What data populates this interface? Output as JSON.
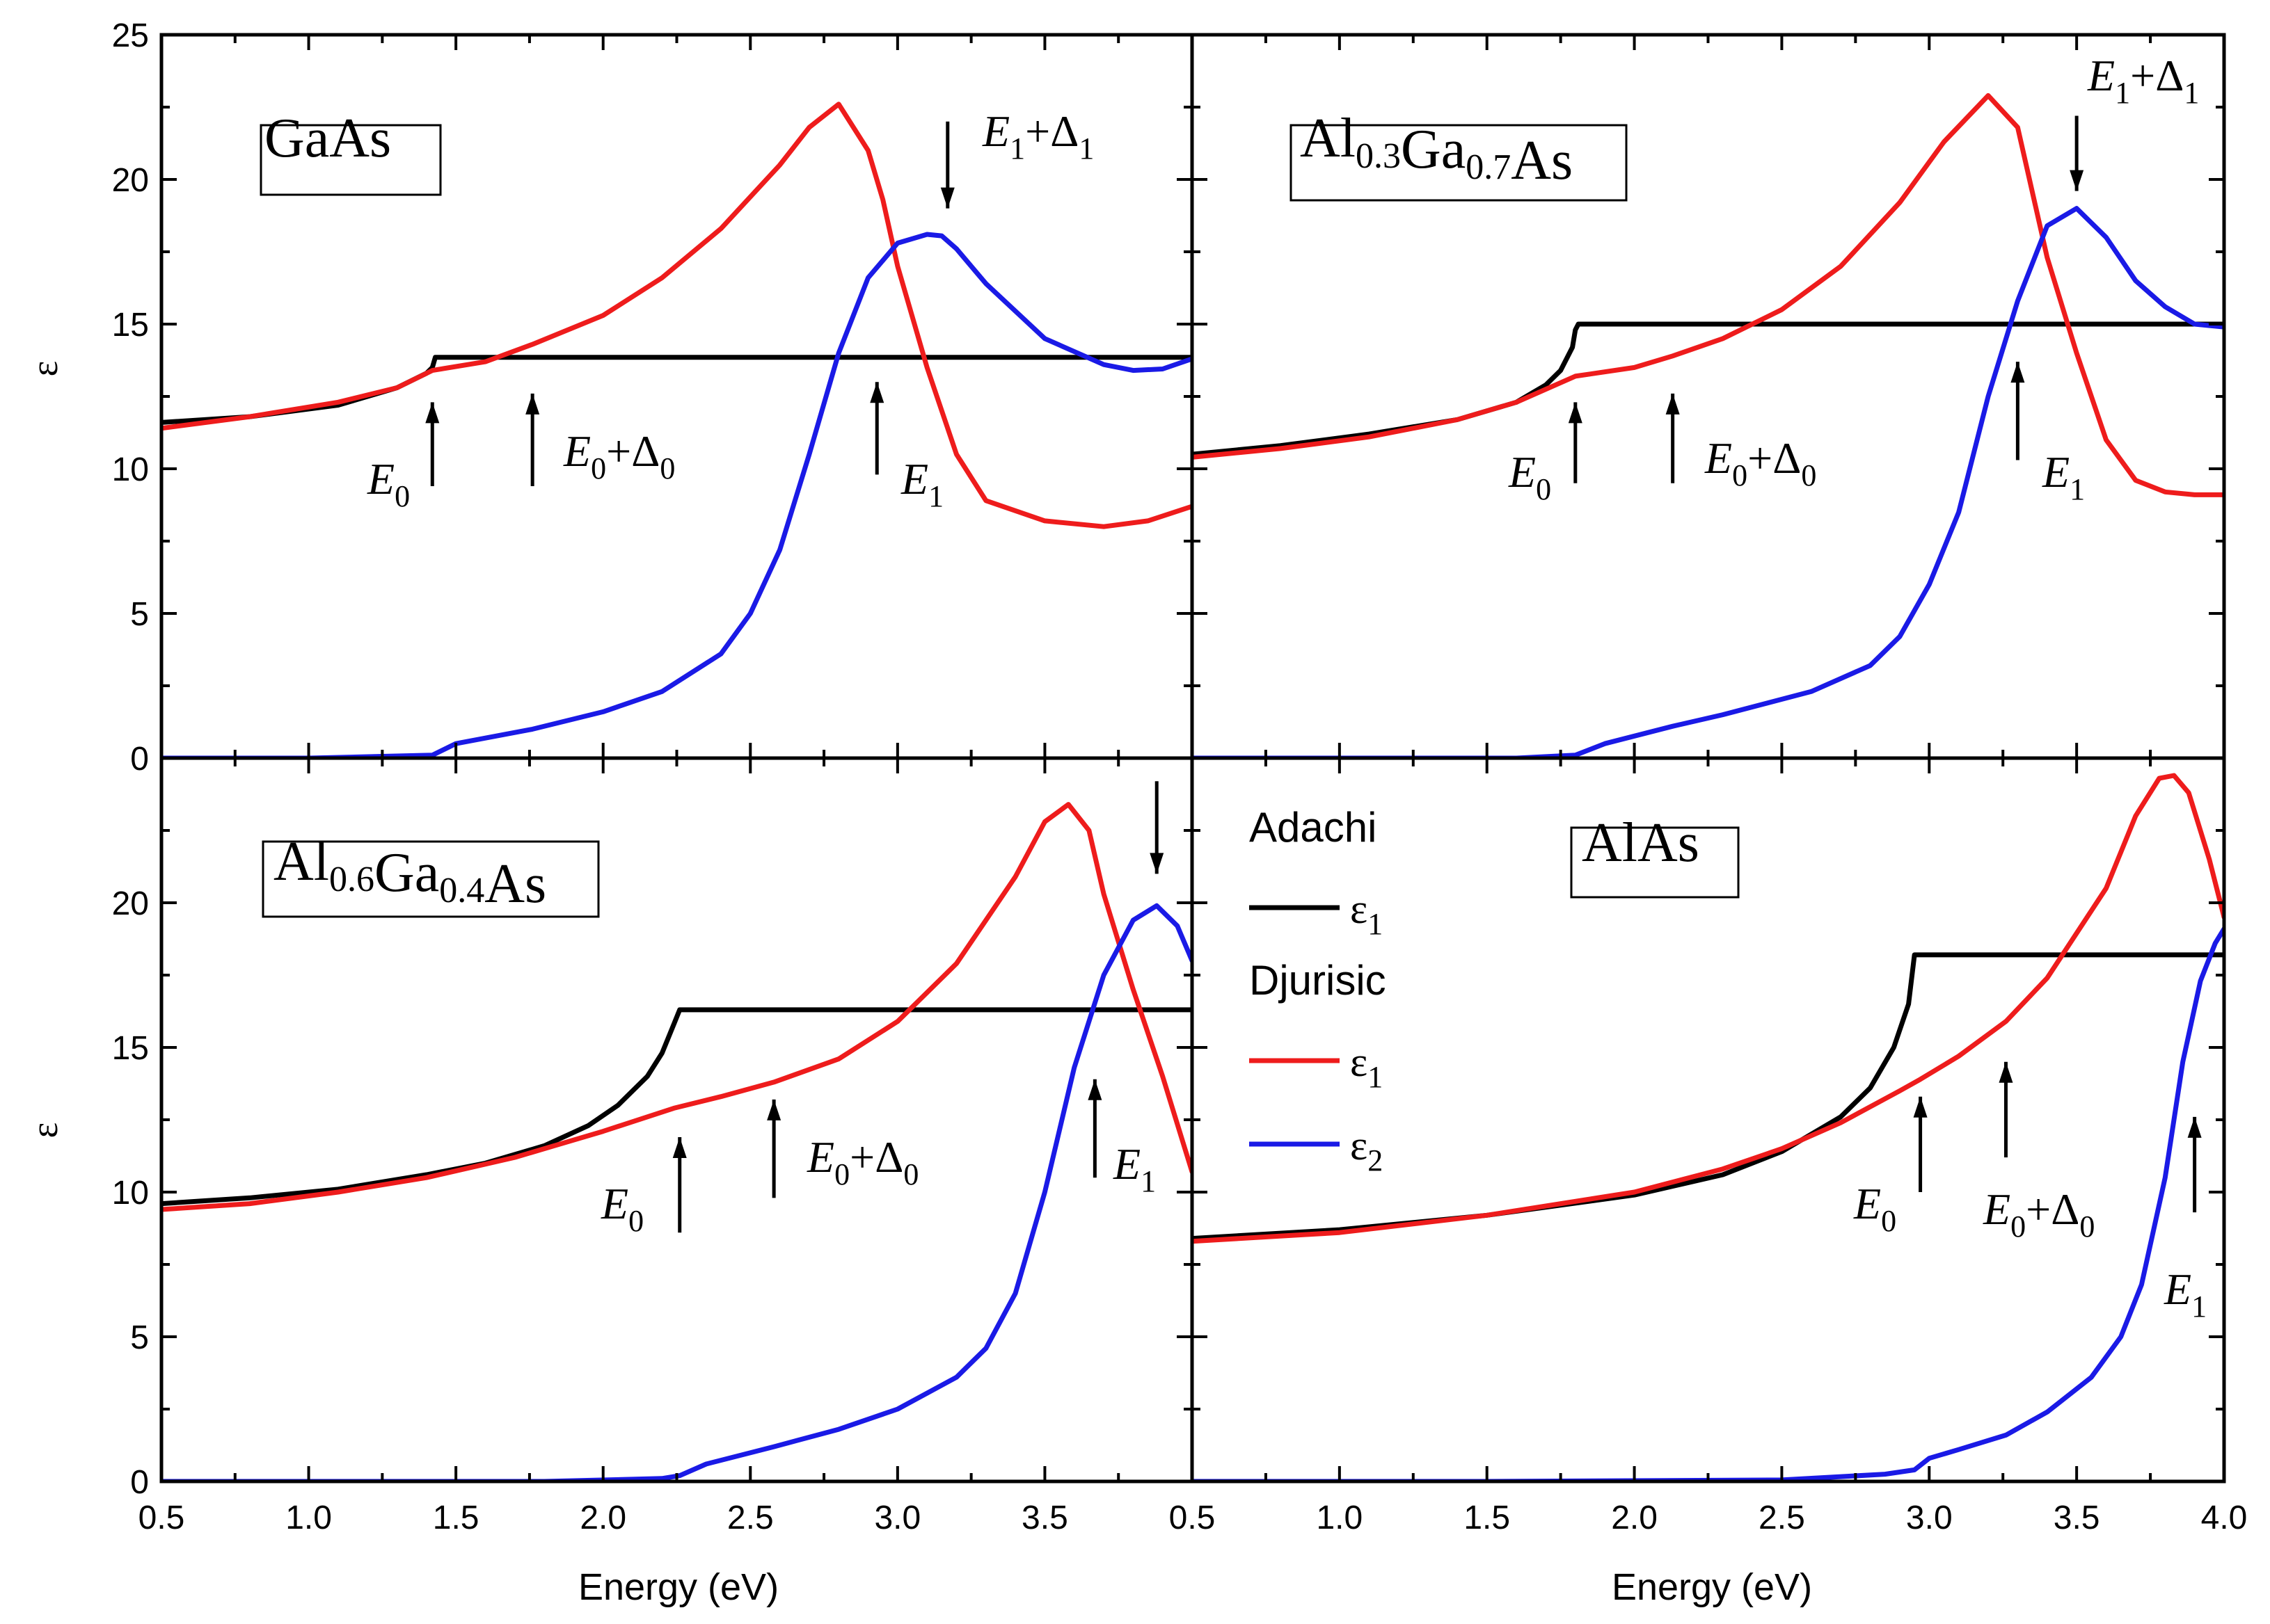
{
  "figure": {
    "x_axis_title": "Energy (eV)",
    "y_axis_title": "ε",
    "colors": {
      "adachi_e1": "#000000",
      "djurisic_e1": "#ee1c1c",
      "djurisic_e2": "#1a1ae6",
      "frame": "#000000"
    }
  },
  "legend": {
    "group1": "Adachi",
    "group2": "Djurisic",
    "entries": [
      {
        "base": "ε",
        "sub": "1",
        "color": "#000000"
      },
      {
        "base": "ε",
        "sub": "1",
        "color": "#ee1c1c"
      },
      {
        "base": "ε",
        "sub": "2",
        "color": "#1a1ae6"
      }
    ]
  },
  "chart_data": [
    {
      "type": "line",
      "panel": "top-left",
      "title_parts": [
        {
          "t": "GaAs"
        }
      ],
      "xlim": [
        0.5,
        4.0
      ],
      "ylim": [
        0,
        25
      ],
      "x_ticks": [],
      "y_ticks": [
        "0",
        "5",
        "10",
        "15",
        "20",
        "25"
      ],
      "y_tick_values": [
        0,
        5,
        10,
        15,
        20,
        25
      ],
      "series": [
        {
          "name": "Adachi ε1",
          "color": "#000000",
          "x": [
            0.5,
            0.8,
            1.1,
            1.3,
            1.4,
            1.42,
            1.43,
            4.0
          ],
          "y": [
            11.6,
            11.8,
            12.2,
            12.8,
            13.3,
            13.5,
            13.85,
            13.85
          ]
        },
        {
          "name": "Djurisic ε1",
          "color": "#ee1c1c",
          "x": [
            0.5,
            0.8,
            1.1,
            1.3,
            1.42,
            1.6,
            1.76,
            2.0,
            2.2,
            2.4,
            2.6,
            2.7,
            2.8,
            2.9,
            2.95,
            3.0,
            3.1,
            3.2,
            3.3,
            3.5,
            3.7,
            3.85,
            4.0
          ],
          "y": [
            11.4,
            11.8,
            12.3,
            12.8,
            13.4,
            13.7,
            14.3,
            15.3,
            16.6,
            18.3,
            20.5,
            21.8,
            22.6,
            21.0,
            19.3,
            17.0,
            13.5,
            10.5,
            8.9,
            8.2,
            8.0,
            8.2,
            8.7
          ]
        },
        {
          "name": "Djurisic ε2",
          "color": "#1a1ae6",
          "x": [
            0.5,
            1.0,
            1.42,
            1.5,
            1.76,
            2.0,
            2.2,
            2.4,
            2.5,
            2.6,
            2.7,
            2.8,
            2.9,
            3.0,
            3.1,
            3.15,
            3.2,
            3.3,
            3.5,
            3.7,
            3.8,
            3.9,
            4.0
          ],
          "y": [
            0.0,
            0.0,
            0.1,
            0.5,
            1.0,
            1.6,
            2.3,
            3.6,
            5.0,
            7.2,
            10.5,
            14.0,
            16.6,
            17.8,
            18.1,
            18.05,
            17.6,
            16.4,
            14.5,
            13.6,
            13.4,
            13.45,
            13.8
          ]
        }
      ],
      "annotations": [
        {
          "base": "E",
          "sub": "0",
          "extra": "",
          "dir": "up",
          "x": 1.42,
          "y_from": 9.4,
          "y_to": 12.3
        },
        {
          "base": "E",
          "sub": "0",
          "extra": "+Δ",
          "extra_sub": "0",
          "dir": "up",
          "x": 1.76,
          "y_from": 9.4,
          "y_to": 12.6
        },
        {
          "base": "E",
          "sub": "1",
          "extra": "",
          "dir": "up",
          "x": 2.93,
          "y_from": 9.8,
          "y_to": 13.0
        },
        {
          "base": "E",
          "sub": "1",
          "extra": "+Δ",
          "extra_sub": "1",
          "dir": "down",
          "x": 3.17,
          "y_from": 22.0,
          "y_to": 19.0
        }
      ]
    },
    {
      "type": "line",
      "panel": "top-right",
      "title_parts": [
        {
          "t": "Al"
        },
        {
          "s": "0.3"
        },
        {
          "t": "Ga"
        },
        {
          "s": "0.7"
        },
        {
          "t": "As"
        }
      ],
      "xlim": [
        0.5,
        4.0
      ],
      "ylim": [
        0,
        25
      ],
      "x_ticks": [],
      "y_ticks": [],
      "y_tick_values": [
        0,
        5,
        10,
        15,
        20,
        25
      ],
      "series": [
        {
          "name": "Adachi ε1",
          "color": "#000000",
          "x": [
            0.5,
            0.8,
            1.1,
            1.4,
            1.6,
            1.7,
            1.75,
            1.79,
            1.8,
            1.81,
            4.0
          ],
          "y": [
            10.5,
            10.8,
            11.2,
            11.7,
            12.3,
            12.9,
            13.4,
            14.2,
            14.8,
            15.0,
            15.0
          ]
        },
        {
          "name": "Djurisic ε1",
          "color": "#ee1c1c",
          "x": [
            0.5,
            0.8,
            1.1,
            1.4,
            1.6,
            1.8,
            2.0,
            2.13,
            2.3,
            2.5,
            2.7,
            2.9,
            3.05,
            3.2,
            3.3,
            3.4,
            3.5,
            3.6,
            3.7,
            3.8,
            3.9,
            4.0
          ],
          "y": [
            10.4,
            10.7,
            11.1,
            11.7,
            12.3,
            13.2,
            13.5,
            13.9,
            14.5,
            15.5,
            17.0,
            19.2,
            21.3,
            22.9,
            21.8,
            17.3,
            14.0,
            11.0,
            9.6,
            9.2,
            9.1,
            9.1
          ]
        },
        {
          "name": "Djurisic ε2",
          "color": "#1a1ae6",
          "x": [
            0.5,
            1.0,
            1.6,
            1.8,
            1.9,
            2.13,
            2.3,
            2.6,
            2.8,
            2.9,
            3.0,
            3.1,
            3.2,
            3.3,
            3.4,
            3.5,
            3.6,
            3.7,
            3.8,
            3.9,
            4.0
          ],
          "y": [
            0.0,
            0.0,
            0.0,
            0.1,
            0.5,
            1.1,
            1.5,
            2.3,
            3.2,
            4.2,
            6.0,
            8.5,
            12.5,
            15.8,
            18.4,
            19.0,
            18.0,
            16.5,
            15.6,
            15.0,
            14.9
          ]
        }
      ],
      "annotations": [
        {
          "base": "E",
          "sub": "0",
          "extra": "",
          "dir": "up",
          "x": 1.8,
          "y_from": 9.5,
          "y_to": 12.3
        },
        {
          "base": "E",
          "sub": "0",
          "extra": "+Δ",
          "extra_sub": "0",
          "dir": "up",
          "x": 2.13,
          "y_from": 9.5,
          "y_to": 12.6
        },
        {
          "base": "E",
          "sub": "1",
          "extra": "",
          "dir": "up",
          "x": 3.3,
          "y_from": 10.3,
          "y_to": 13.7
        },
        {
          "base": "E",
          "sub": "1",
          "extra": "+Δ",
          "extra_sub": "1",
          "dir": "down",
          "x": 3.5,
          "y_from": 22.2,
          "y_to": 19.6
        }
      ]
    },
    {
      "type": "line",
      "panel": "bottom-left",
      "title_parts": [
        {
          "t": "Al"
        },
        {
          "s": "0.6"
        },
        {
          "t": "Ga"
        },
        {
          "s": "0.4"
        },
        {
          "t": "As"
        }
      ],
      "xlim": [
        0.5,
        4.0
      ],
      "ylim": [
        0,
        25
      ],
      "x_ticks": [
        "0.5",
        "1.0",
        "1.5",
        "2.0",
        "2.5",
        "3.0",
        "3.5"
      ],
      "x_tick_values": [
        0.5,
        1.0,
        1.5,
        2.0,
        2.5,
        3.0,
        3.5
      ],
      "y_ticks": [
        "0",
        "5",
        "10",
        "15",
        "20"
      ],
      "y_tick_values": [
        0,
        5,
        10,
        15,
        20
      ],
      "series": [
        {
          "name": "Adachi ε1",
          "color": "#000000",
          "x": [
            0.5,
            0.8,
            1.1,
            1.4,
            1.6,
            1.8,
            1.95,
            2.05,
            2.15,
            2.2,
            2.24,
            2.26,
            4.0
          ],
          "y": [
            9.6,
            9.8,
            10.1,
            10.6,
            11.0,
            11.6,
            12.3,
            13.0,
            14.0,
            14.8,
            15.8,
            16.3,
            16.3
          ]
        },
        {
          "name": "Djurisic ε1",
          "color": "#ee1c1c",
          "x": [
            0.5,
            0.8,
            1.1,
            1.4,
            1.7,
            2.0,
            2.24,
            2.4,
            2.58,
            2.8,
            3.0,
            3.2,
            3.4,
            3.5,
            3.58,
            3.65,
            3.7,
            3.8,
            3.9,
            4.0
          ],
          "y": [
            9.4,
            9.6,
            10.0,
            10.5,
            11.2,
            12.1,
            12.9,
            13.3,
            13.8,
            14.6,
            15.9,
            17.9,
            20.9,
            22.8,
            23.4,
            22.5,
            20.3,
            17.0,
            14.0,
            10.7
          ]
        },
        {
          "name": "Djurisic ε2",
          "color": "#1a1ae6",
          "x": [
            0.5,
            1.0,
            1.8,
            2.2,
            2.26,
            2.35,
            2.58,
            2.8,
            3.0,
            3.2,
            3.3,
            3.4,
            3.5,
            3.6,
            3.7,
            3.8,
            3.88,
            3.95,
            4.0
          ],
          "y": [
            0.0,
            0.0,
            0.0,
            0.1,
            0.2,
            0.6,
            1.2,
            1.8,
            2.5,
            3.6,
            4.6,
            6.5,
            10.0,
            14.3,
            17.5,
            19.4,
            19.9,
            19.2,
            18.0
          ]
        }
      ],
      "annotations": [
        {
          "base": "E",
          "sub": "0",
          "extra": "",
          "dir": "up",
          "x": 2.26,
          "y_from": 8.6,
          "y_to": 11.9
        },
        {
          "base": "E",
          "sub": "0",
          "extra": "+Δ",
          "extra_sub": "0",
          "dir": "up",
          "x": 2.58,
          "y_from": 9.8,
          "y_to": 13.2
        },
        {
          "base": "E",
          "sub": "1",
          "extra": "",
          "dir": "up",
          "x": 3.67,
          "y_from": 10.5,
          "y_to": 13.9
        },
        {
          "base": "",
          "sub": "",
          "extra": "",
          "dir": "down",
          "x": 3.88,
          "y_from": 24.2,
          "y_to": 21.0
        }
      ]
    },
    {
      "type": "line",
      "panel": "bottom-right",
      "title_parts": [
        {
          "t": "AlAs"
        }
      ],
      "xlim": [
        0.5,
        4.0
      ],
      "ylim": [
        0,
        25
      ],
      "x_ticks": [
        "0.5",
        "1.0",
        "1.5",
        "2.0",
        "2.5",
        "3.0",
        "3.5",
        "4.0"
      ],
      "x_tick_values": [
        0.5,
        1.0,
        1.5,
        2.0,
        2.5,
        3.0,
        3.5,
        4.0
      ],
      "y_ticks": [],
      "y_tick_values": [
        0,
        5,
        10,
        15,
        20
      ],
      "series": [
        {
          "name": "Adachi ε1",
          "color": "#000000",
          "x": [
            0.5,
            1.0,
            1.5,
            2.0,
            2.3,
            2.5,
            2.7,
            2.8,
            2.88,
            2.93,
            2.95,
            4.0
          ],
          "y": [
            8.4,
            8.7,
            9.2,
            9.9,
            10.6,
            11.4,
            12.6,
            13.6,
            15.0,
            16.5,
            18.2,
            18.2
          ]
        },
        {
          "name": "Djurisic ε1",
          "color": "#ee1c1c",
          "x": [
            0.5,
            1.0,
            1.5,
            2.0,
            2.3,
            2.5,
            2.7,
            2.9,
            2.97,
            3.1,
            3.26,
            3.4,
            3.6,
            3.7,
            3.78,
            3.83,
            3.88,
            3.95,
            4.0
          ],
          "y": [
            8.3,
            8.6,
            9.2,
            10.0,
            10.8,
            11.5,
            12.4,
            13.5,
            13.9,
            14.7,
            15.9,
            17.4,
            20.5,
            23.0,
            24.3,
            24.4,
            23.8,
            21.5,
            19.5
          ]
        },
        {
          "name": "Djurisic ε2",
          "color": "#1a1ae6",
          "x": [
            0.5,
            1.5,
            2.5,
            2.85,
            2.95,
            3.0,
            3.1,
            3.26,
            3.4,
            3.55,
            3.65,
            3.72,
            3.8,
            3.86,
            3.92,
            3.97,
            4.0
          ],
          "y": [
            0.0,
            0.0,
            0.05,
            0.25,
            0.4,
            0.8,
            1.1,
            1.6,
            2.4,
            3.6,
            5.0,
            6.8,
            10.5,
            14.5,
            17.3,
            18.6,
            19.1
          ]
        }
      ],
      "annotations": [
        {
          "base": "E",
          "sub": "0",
          "extra": "",
          "dir": "up",
          "x": 2.97,
          "y_from": 10.0,
          "y_to": 13.3
        },
        {
          "base": "E",
          "sub": "0",
          "extra": "+Δ",
          "extra_sub": "0",
          "dir": "up",
          "x": 3.26,
          "y_from": 11.2,
          "y_to": 14.5
        },
        {
          "base": "E",
          "sub": "1",
          "extra": "",
          "dir": "up",
          "x": 3.9,
          "y_from": 9.3,
          "y_to": 12.6
        }
      ]
    }
  ]
}
